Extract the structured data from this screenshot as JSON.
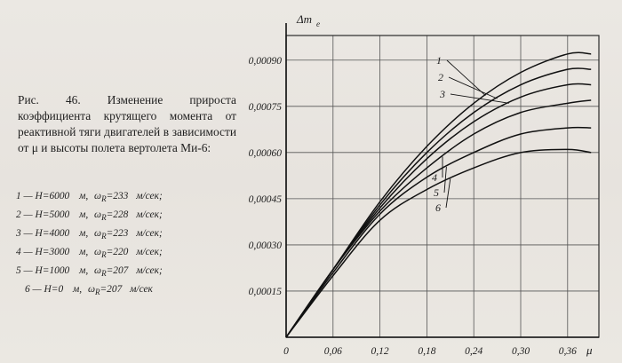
{
  "caption": {
    "text": "Рис. 46. Изменение прироста коэффициента крутящего момента от реактивной тяги двигателей в зависимости от μ и высоты полета вертолета Ми-6:"
  },
  "legend": [
    {
      "num": "1",
      "h": "6000",
      "w": "233"
    },
    {
      "num": "2",
      "h": "5000",
      "w": "228"
    },
    {
      "num": "3",
      "h": "4000",
      "w": "223"
    },
    {
      "num": "4",
      "h": "3000",
      "w": "220"
    },
    {
      "num": "5",
      "h": "1000",
      "w": "207"
    },
    {
      "num": "6",
      "h": "0",
      "w": "207"
    }
  ],
  "legend_text": {
    "h_prefix": "H=",
    "unit_m": "м,",
    "w_prefix": "ω",
    "w_sub": "R",
    "unit_speed": "м/сек;",
    "unit_speed_last": "м/сек"
  },
  "chart_data": {
    "type": "line",
    "title": "",
    "xlabel": "μ",
    "ylabel": "Δm_e",
    "x_ticks": [
      "0",
      "0,06",
      "0,12",
      "0,18",
      "0,24",
      "0,30",
      "0,36"
    ],
    "y_ticks": [
      "0,00015",
      "0,00030",
      "0,00045",
      "0,00060",
      "0,00075",
      "0,00090"
    ],
    "xlim": [
      0,
      0.4
    ],
    "ylim": [
      0,
      0.00098
    ],
    "grid": true,
    "series": [
      {
        "name": "1",
        "x": [
          0,
          0.06,
          0.12,
          0.18,
          0.24,
          0.3,
          0.36,
          0.39
        ],
        "y": [
          0,
          0.00022,
          0.00044,
          0.00062,
          0.00076,
          0.00086,
          0.00092,
          0.00092
        ]
      },
      {
        "name": "2",
        "x": [
          0,
          0.06,
          0.12,
          0.18,
          0.24,
          0.3,
          0.36,
          0.39
        ],
        "y": [
          0,
          0.00022,
          0.00043,
          0.0006,
          0.00073,
          0.00082,
          0.00087,
          0.00087
        ]
      },
      {
        "name": "3",
        "x": [
          0,
          0.06,
          0.12,
          0.18,
          0.24,
          0.3,
          0.36,
          0.39
        ],
        "y": [
          0,
          0.00022,
          0.00042,
          0.00058,
          0.0007,
          0.00078,
          0.00082,
          0.00082
        ]
      },
      {
        "name": "4",
        "x": [
          0,
          0.06,
          0.12,
          0.18,
          0.24,
          0.3,
          0.36,
          0.39
        ],
        "y": [
          0,
          0.00022,
          0.00041,
          0.00055,
          0.00066,
          0.00073,
          0.00076,
          0.00077
        ]
      },
      {
        "name": "5",
        "x": [
          0,
          0.06,
          0.12,
          0.18,
          0.24,
          0.3,
          0.36,
          0.39
        ],
        "y": [
          0,
          0.00021,
          0.0004,
          0.00052,
          0.0006,
          0.00066,
          0.00068,
          0.00068
        ]
      },
      {
        "name": "6",
        "x": [
          0,
          0.06,
          0.12,
          0.18,
          0.24,
          0.3,
          0.36,
          0.39
        ],
        "y": [
          0,
          0.0002,
          0.00038,
          0.00048,
          0.00055,
          0.0006,
          0.00061,
          0.0006
        ]
      }
    ]
  }
}
